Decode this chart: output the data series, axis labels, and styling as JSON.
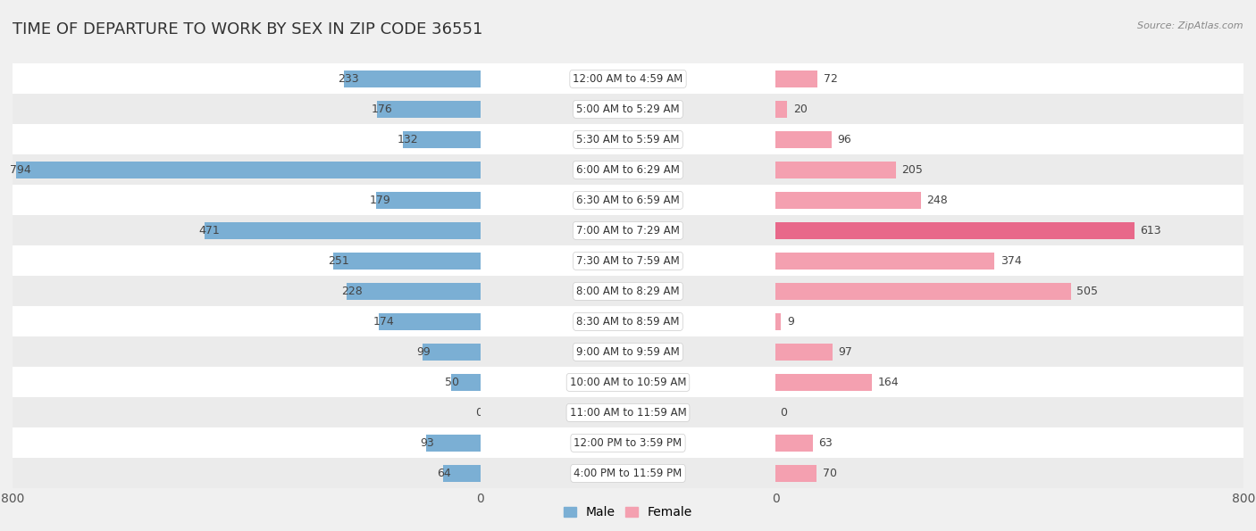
{
  "title": "TIME OF DEPARTURE TO WORK BY SEX IN ZIP CODE 36551",
  "source": "Source: ZipAtlas.com",
  "categories": [
    "12:00 AM to 4:59 AM",
    "5:00 AM to 5:29 AM",
    "5:30 AM to 5:59 AM",
    "6:00 AM to 6:29 AM",
    "6:30 AM to 6:59 AM",
    "7:00 AM to 7:29 AM",
    "7:30 AM to 7:59 AM",
    "8:00 AM to 8:29 AM",
    "8:30 AM to 8:59 AM",
    "9:00 AM to 9:59 AM",
    "10:00 AM to 10:59 AM",
    "11:00 AM to 11:59 AM",
    "12:00 PM to 3:59 PM",
    "4:00 PM to 11:59 PM"
  ],
  "male_values": [
    233,
    176,
    132,
    794,
    179,
    471,
    251,
    228,
    174,
    99,
    50,
    0,
    93,
    64
  ],
  "female_values": [
    72,
    20,
    96,
    205,
    248,
    613,
    374,
    505,
    9,
    97,
    164,
    0,
    63,
    70
  ],
  "male_color": "#7bafd4",
  "female_color": "#f4a0b0",
  "female_color_dark": "#e8688a",
  "xlim": 800,
  "bar_height": 0.55,
  "bg_color": "#f0f0f0",
  "row_colors": [
    "#ffffff",
    "#ebebeb"
  ],
  "title_fontsize": 13,
  "label_fontsize": 9,
  "category_fontsize": 8.5,
  "axis_tick_fontsize": 10,
  "legend_fontsize": 10
}
